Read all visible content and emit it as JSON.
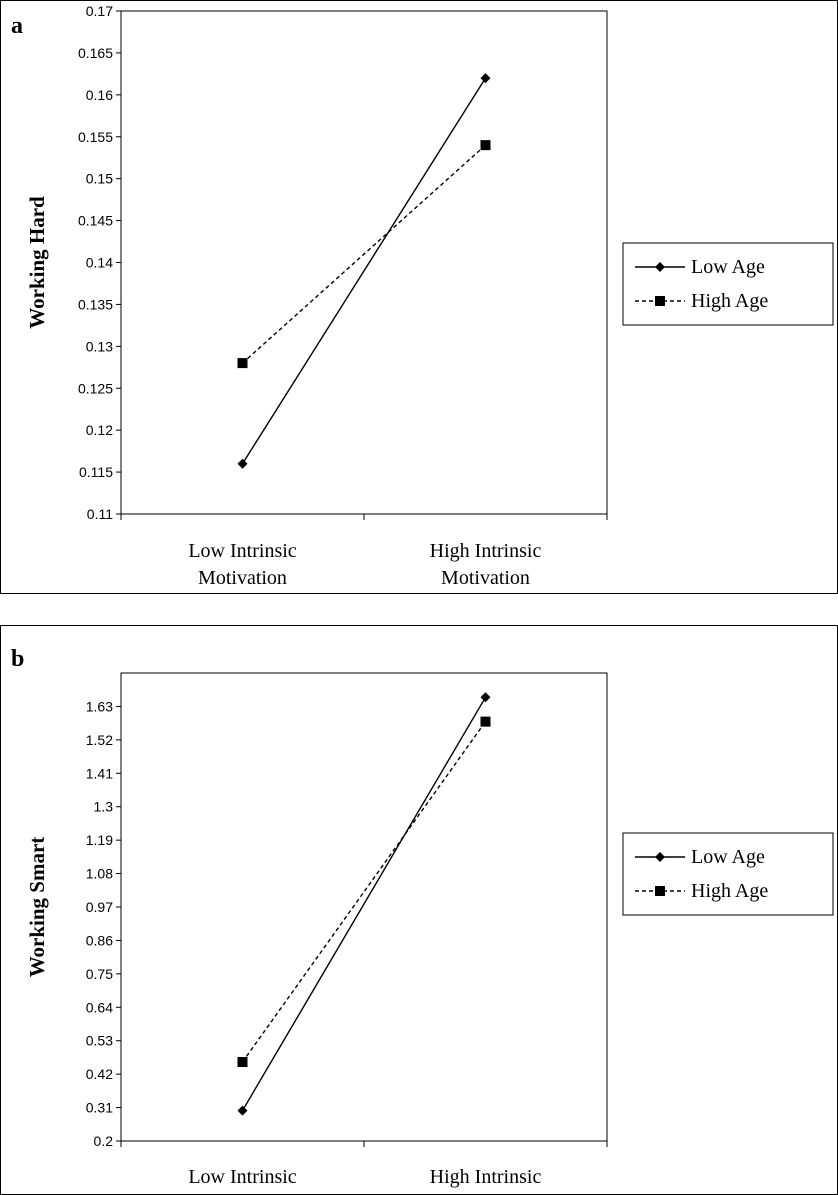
{
  "chart_data": [
    {
      "type": "line",
      "panel_label": "a",
      "ylabel": "Working Hard",
      "categories": [
        "Low Intrinsic\nMotivation",
        "High Intrinsic\nMotivation"
      ],
      "yticks": [
        "0.11",
        "0.115",
        "0.12",
        "0.125",
        "0.13",
        "0.135",
        "0.14",
        "0.145",
        "0.15",
        "0.155",
        "0.16",
        "0.165",
        "0.17"
      ],
      "ylim": [
        0.11,
        0.17
      ],
      "series": [
        {
          "name": "Low Age",
          "values": [
            0.116,
            0.162
          ],
          "line_style": "solid",
          "marker": "diamond"
        },
        {
          "name": "High Age",
          "values": [
            0.128,
            0.154
          ],
          "line_style": "dashed",
          "marker": "square"
        }
      ],
      "legend": "right",
      "grid": false
    },
    {
      "type": "line",
      "panel_label": "b",
      "ylabel": "Working Smart",
      "categories": [
        "Low Intrinsic\nMotivation",
        "High Intrinsic\nMotivation"
      ],
      "yticks": [
        "0.2",
        "0.31",
        "0.42",
        "0.53",
        "0.64",
        "0.75",
        "0.86",
        "0.97",
        "1.08",
        "1.19",
        "1.3",
        "1.41",
        "1.52",
        "1.63"
      ],
      "ylim": [
        0.2,
        1.74
      ],
      "series": [
        {
          "name": "Low Age",
          "values": [
            0.3,
            1.66
          ],
          "line_style": "solid",
          "marker": "diamond"
        },
        {
          "name": "High Age",
          "values": [
            0.46,
            1.58
          ],
          "line_style": "dashed",
          "marker": "square"
        }
      ],
      "legend": "right",
      "grid": false
    }
  ]
}
